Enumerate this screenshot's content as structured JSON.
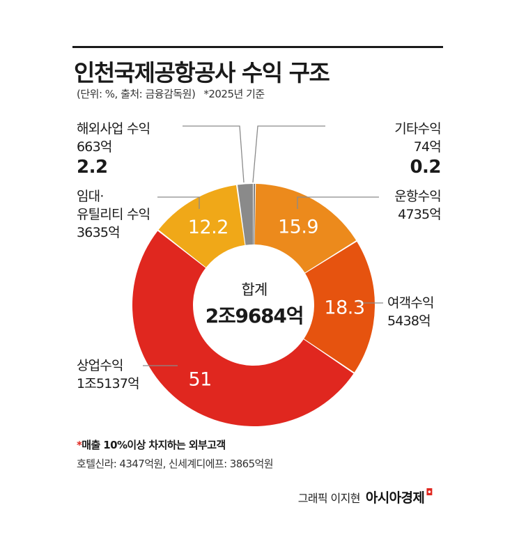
{
  "title": "인천국제공항공사 수익 구조",
  "subtitle": "(단위: %, 출처: 금융감독원)",
  "subtitle_note": "*2025년 기준",
  "center": {
    "label": "합계",
    "total": "2조9684억"
  },
  "labels": {
    "overseas": {
      "name": "해외사업 수익",
      "amount": "663억",
      "pct": "2.2"
    },
    "other": {
      "name": "기타수익",
      "amount": "74억",
      "pct": "0.2"
    },
    "rental_line1": "임대·",
    "rental_line2": "유틸리티 수익",
    "rental_amount": "3635억",
    "airport_ops": {
      "name": "운항수익",
      "amount": "4735억"
    },
    "passenger": {
      "name": "여객수익",
      "amount": "5438억"
    },
    "commercial": {
      "name": "상업수익",
      "amount": "1조5137억"
    }
  },
  "footnote": {
    "star": "*",
    "heading": "매출 10%이상 차지하는 외부고객",
    "detail": "호텔신라: 4347억원, 신세계디에프: 3865억원"
  },
  "credit": {
    "graphic": "그래픽 이지현",
    "brand": "아시아경제",
    "mark": "◘"
  },
  "chart_data": {
    "type": "pie",
    "donut": true,
    "categories": [
      "기타수익",
      "운항수익",
      "여객수익",
      "상업수익",
      "임대·유틸리티 수익",
      "해외사업 수익"
    ],
    "values": [
      0.2,
      15.9,
      18.3,
      51,
      12.2,
      2.2
    ],
    "value_labels": [
      "",
      "15.9",
      "18.3",
      "51",
      "12.2",
      ""
    ],
    "colors": [
      "#7a7a7a",
      "#ec8a1c",
      "#e6530f",
      "#e0271f",
      "#f0a818",
      "#8a8a8a"
    ],
    "unit": "%",
    "start": "top, clockwise"
  }
}
